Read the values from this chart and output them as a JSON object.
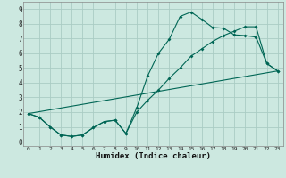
{
  "xlabel": "Humidex (Indice chaleur)",
  "bg_color": "#cce8e0",
  "grid_color": "#aaccc4",
  "line_color": "#006655",
  "xlim": [
    -0.5,
    23.5
  ],
  "ylim": [
    -0.3,
    9.5
  ],
  "xticks": [
    0,
    1,
    2,
    3,
    4,
    5,
    6,
    7,
    8,
    9,
    10,
    11,
    12,
    13,
    14,
    15,
    16,
    17,
    18,
    19,
    20,
    21,
    22,
    23
  ],
  "yticks": [
    0,
    1,
    2,
    3,
    4,
    5,
    6,
    7,
    8,
    9
  ],
  "line1_x": [
    0,
    1,
    2,
    3,
    4,
    5,
    6,
    7,
    8,
    9,
    10,
    11,
    12,
    13,
    14,
    15,
    16,
    17,
    18,
    19,
    20,
    21,
    22,
    23
  ],
  "line1_y": [
    1.9,
    1.65,
    1.0,
    0.45,
    0.35,
    0.45,
    0.95,
    1.35,
    1.45,
    0.55,
    2.3,
    4.45,
    6.0,
    6.95,
    8.5,
    8.8,
    8.3,
    7.75,
    7.7,
    7.25,
    7.2,
    7.1,
    5.3,
    4.8
  ],
  "line2_x": [
    0,
    1,
    2,
    3,
    4,
    5,
    6,
    7,
    8,
    9,
    10,
    11,
    12,
    13,
    14,
    15,
    16,
    17,
    18,
    19,
    20,
    21,
    22,
    23
  ],
  "line2_y": [
    1.9,
    1.65,
    1.0,
    0.45,
    0.35,
    0.45,
    0.95,
    1.35,
    1.45,
    0.55,
    2.0,
    2.8,
    3.5,
    4.3,
    5.0,
    5.8,
    6.3,
    6.8,
    7.2,
    7.5,
    7.8,
    7.8,
    5.3,
    4.8
  ],
  "line3_x": [
    0,
    23
  ],
  "line3_y": [
    1.9,
    4.8
  ]
}
